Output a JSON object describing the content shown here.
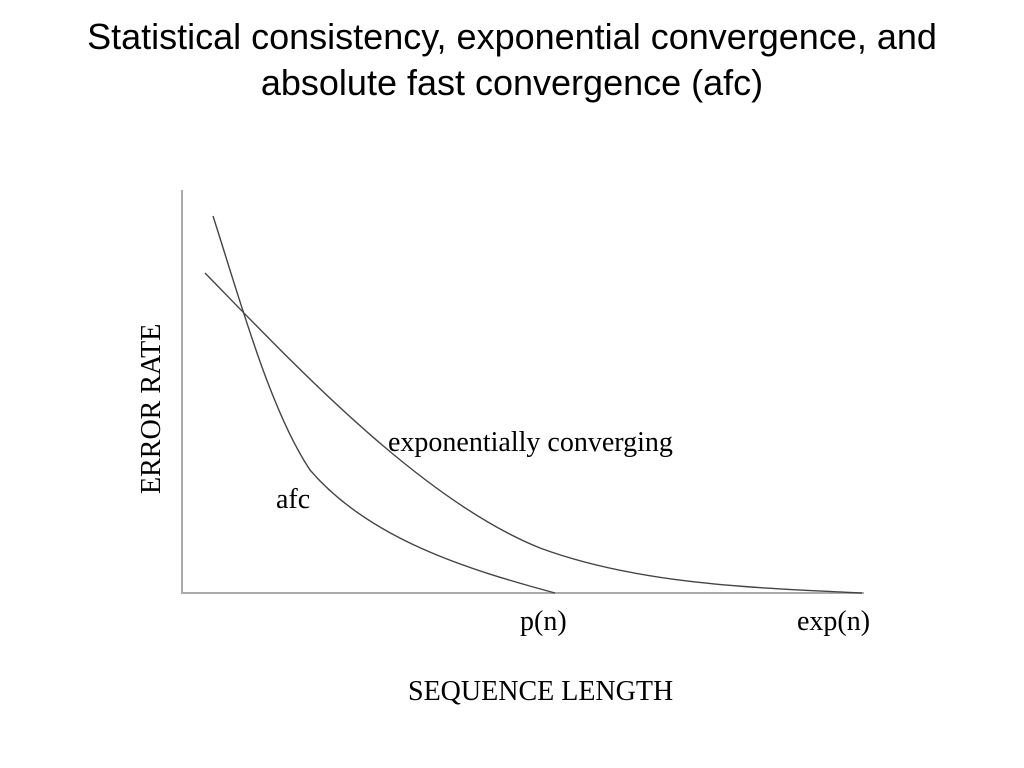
{
  "title": {
    "line1": "Statistical consistency, exponential convergence, and",
    "line2": "absolute fast convergence (afc)"
  },
  "diagram": {
    "y_axis_label": "ERROR RATE",
    "x_axis_label": "SEQUENCE LENGTH",
    "x_ticks": [
      "p(n)",
      "exp(n)"
    ],
    "curves": [
      {
        "label": "exponentially converging"
      },
      {
        "label": "afc"
      }
    ]
  }
}
